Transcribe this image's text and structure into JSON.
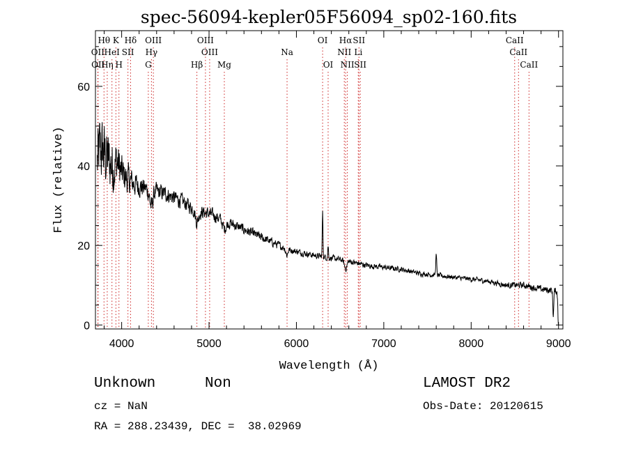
{
  "chart_data": {
    "type": "line",
    "title": "spec-56094-kepler05F56094_sp02-160.fits",
    "xlabel": "Wavelength (Å)",
    "ylabel": "Flux (relative)",
    "xlim": [
      3700,
      9050
    ],
    "ylim": [
      -1,
      74
    ],
    "xticks": [
      4000,
      5000,
      6000,
      7000,
      8000,
      9000
    ],
    "yticks": [
      0,
      20,
      40,
      60
    ],
    "xtick_labels": [
      "4000",
      "5000",
      "6000",
      "7000",
      "8000",
      "9000"
    ],
    "ytick_labels": [
      "0",
      "20",
      "40",
      "60"
    ],
    "x_minor_step": 200,
    "y_minor_step": 5,
    "continuum": [
      [
        3700,
        38
      ],
      [
        3750,
        44
      ],
      [
        3800,
        43
      ],
      [
        3850,
        41
      ],
      [
        3900,
        40
      ],
      [
        3950,
        41
      ],
      [
        4000,
        38
      ],
      [
        4100,
        36
      ],
      [
        4200,
        35
      ],
      [
        4300,
        34
      ],
      [
        4400,
        33.5
      ],
      [
        4500,
        33
      ],
      [
        4600,
        32
      ],
      [
        4700,
        31
      ],
      [
        4800,
        29.5
      ],
      [
        4900,
        28.5
      ],
      [
        5000,
        28
      ],
      [
        5100,
        27
      ],
      [
        5200,
        26
      ],
      [
        5300,
        25
      ],
      [
        5400,
        24
      ],
      [
        5500,
        23
      ],
      [
        5600,
        22
      ],
      [
        5700,
        21
      ],
      [
        5800,
        20
      ],
      [
        5900,
        19
      ],
      [
        6000,
        18.5
      ],
      [
        6200,
        17.5
      ],
      [
        6400,
        16.8
      ],
      [
        6600,
        16
      ],
      [
        6800,
        15
      ],
      [
        7000,
        14.5
      ],
      [
        7200,
        14
      ],
      [
        7400,
        13
      ],
      [
        7600,
        12.5
      ],
      [
        7800,
        12
      ],
      [
        8000,
        11.5
      ],
      [
        8200,
        11
      ],
      [
        8400,
        10
      ],
      [
        8600,
        10
      ],
      [
        8800,
        9
      ],
      [
        9000,
        8.5
      ]
    ],
    "features": [
      {
        "x": 4340,
        "depth": 4,
        "width": 25
      },
      {
        "x": 4861,
        "depth": 3,
        "width": 25
      },
      {
        "x": 5175,
        "depth": 2,
        "width": 30
      },
      {
        "x": 5890,
        "depth": 1.5,
        "width": 15
      },
      {
        "x": 6300,
        "depth": -11,
        "width": 6
      },
      {
        "x": 6363,
        "depth": -3,
        "width": 6
      },
      {
        "x": 6563,
        "depth": 2,
        "width": 20
      },
      {
        "x": 7600,
        "depth": -5,
        "width": 8
      },
      {
        "x": 8940,
        "depth": 6,
        "width": 8
      },
      {
        "x": 8995,
        "depth": 3,
        "width": 10
      }
    ],
    "noise_profile": [
      [
        3700,
        14
      ],
      [
        3900,
        11
      ],
      [
        4000,
        7
      ],
      [
        4200,
        4
      ],
      [
        4500,
        3
      ],
      [
        5000,
        2.4
      ],
      [
        6000,
        1.2
      ],
      [
        7000,
        1
      ],
      [
        8000,
        0.9
      ],
      [
        9000,
        1.4
      ]
    ],
    "spectral_lines": [
      {
        "label": "Hθ",
        "x": 3798,
        "row": 1
      },
      {
        "label": "K",
        "x": 3934,
        "row": 1
      },
      {
        "label": "Hδ",
        "x": 4102,
        "row": 1
      },
      {
        "label": "OIII",
        "x": 4363,
        "row": 1
      },
      {
        "label": "OIII",
        "x": 4959,
        "row": 1
      },
      {
        "label": "OI",
        "x": 6300,
        "row": 1
      },
      {
        "label": "Hα",
        "x": 6563,
        "row": 1
      },
      {
        "label": "SII",
        "x": 6716,
        "row": 1
      },
      {
        "label": "CaII",
        "x": 8498,
        "row": 1
      },
      {
        "label": "OII",
        "x": 3727,
        "row": 2
      },
      {
        "label": "HeI",
        "x": 3889,
        "row": 2
      },
      {
        "label": "SII",
        "x": 4072,
        "row": 2
      },
      {
        "label": "Hγ",
        "x": 4341,
        "row": 2
      },
      {
        "label": "OIII",
        "x": 5007,
        "row": 2
      },
      {
        "label": "Na",
        "x": 5893,
        "row": 2
      },
      {
        "label": "NII",
        "x": 6548,
        "row": 2
      },
      {
        "label": "Li",
        "x": 6708,
        "row": 2
      },
      {
        "label": "CaII",
        "x": 8542,
        "row": 2
      },
      {
        "label": "OII",
        "x": 3730,
        "row": 3
      },
      {
        "label": "Hη",
        "x": 3835,
        "row": 3
      },
      {
        "label": "H",
        "x": 3969,
        "row": 3
      },
      {
        "label": "G",
        "x": 4305,
        "row": 3
      },
      {
        "label": "Hβ",
        "x": 4861,
        "row": 3
      },
      {
        "label": "Mg",
        "x": 5175,
        "row": 3
      },
      {
        "label": "OI",
        "x": 6363,
        "row": 3
      },
      {
        "label": "NII",
        "x": 6583,
        "row": 3
      },
      {
        "label": "SII",
        "x": 6731,
        "row": 3
      },
      {
        "label": "CaII",
        "x": 8662,
        "row": 3
      }
    ]
  },
  "info": {
    "object_class": "Unknown",
    "subclass": "Non",
    "survey": "LAMOST DR2",
    "redshift": "cz = NaN",
    "obs_date": "Obs-Date: 20120615",
    "coords": "RA = 288.23439, DEC =  38.02969"
  },
  "colors": {
    "line_marker": "#cc2222",
    "spectrum": "#000000",
    "axes": "#000000"
  }
}
